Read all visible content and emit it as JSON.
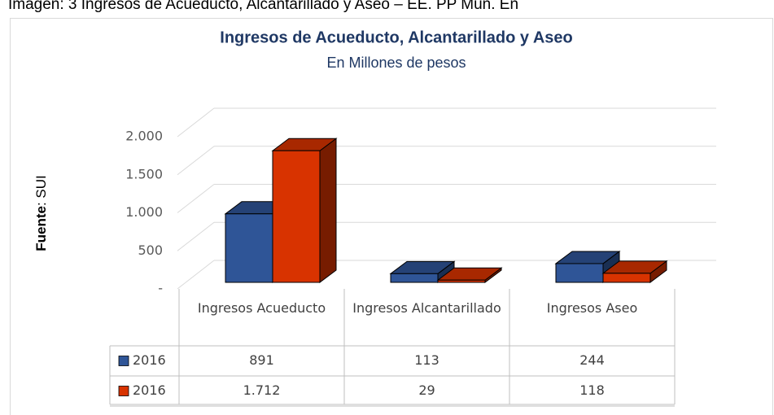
{
  "caption": "Imagen: 3 Ingresos de Acueducto, Alcantarillado y Aseo – EE. PP Mun. En",
  "source_label": "Fuente",
  "source_value": ": SUI",
  "chart_data": {
    "type": "bar3d",
    "title": "Ingresos de Acueducto, Alcantarillado y Aseo",
    "subtitle": "En Millones de pesos",
    "categories": [
      "Ingresos Acueducto",
      "Ingresos Alcantarillado",
      "Ingresos Aseo"
    ],
    "series": [
      {
        "name": "2016",
        "color": "#2f5597",
        "values": [
          891,
          113,
          244
        ]
      },
      {
        "name": "2016",
        "color": "#d83300",
        "values": [
          1712,
          29,
          118
        ],
        "value_labels": [
          "1.712",
          "29",
          "118"
        ]
      }
    ],
    "ylim": [
      0,
      2000
    ],
    "yticks": [
      {
        "value": 0,
        "label": "-"
      },
      500,
      {
        "value": 1000,
        "label": "1.000"
      },
      {
        "value": 1500,
        "label": "1.500"
      },
      {
        "value": 2000,
        "label": "2.000"
      }
    ],
    "grid": true,
    "data_table": true
  }
}
